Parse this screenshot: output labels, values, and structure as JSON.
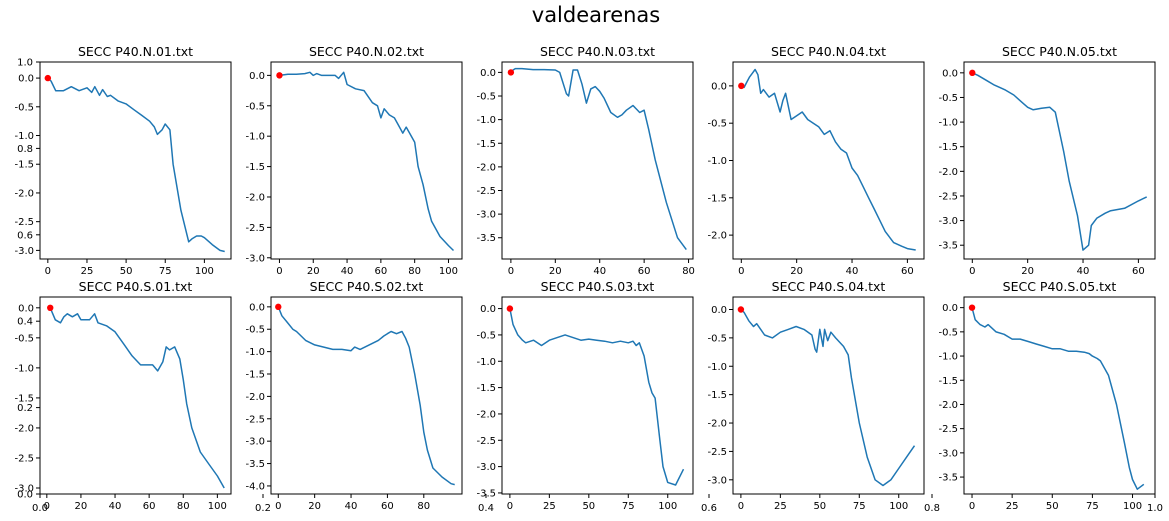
{
  "figure": {
    "title": "valdearenas",
    "background_axis": {
      "xticks": [
        "0.0",
        "0.2",
        "0.4",
        "0.6",
        "0.8",
        "1.0"
      ],
      "yticks": [
        "0.0",
        "0.2",
        "0.4",
        "0.6",
        "0.8",
        "1.0"
      ]
    }
  },
  "chart_data": [
    {
      "type": "line",
      "title": "SECC P40.N.01.txt",
      "xlim": [
        -5,
        117
      ],
      "ylim": [
        -3.15,
        0.28
      ],
      "xticks": [
        0,
        25,
        50,
        75,
        100
      ],
      "yticks": [
        0.0,
        -0.5,
        -1.0,
        -1.5,
        -2.0,
        -2.5,
        -3.0
      ],
      "x": [
        0,
        2,
        5,
        10,
        15,
        20,
        25,
        28,
        30,
        33,
        35,
        38,
        40,
        45,
        50,
        55,
        60,
        65,
        68,
        70,
        73,
        75,
        78,
        80,
        85,
        90,
        92,
        95,
        98,
        100,
        103,
        105,
        110,
        113
      ],
      "y": [
        0,
        -0.05,
        -0.22,
        -0.22,
        -0.15,
        -0.22,
        -0.17,
        -0.25,
        -0.15,
        -0.3,
        -0.2,
        -0.32,
        -0.3,
        -0.4,
        -0.45,
        -0.55,
        -0.65,
        -0.75,
        -0.85,
        -0.98,
        -0.9,
        -0.8,
        -0.9,
        -1.5,
        -2.3,
        -2.85,
        -2.8,
        -2.75,
        -2.75,
        -2.78,
        -2.85,
        -2.9,
        -3.0,
        -3.02
      ],
      "origin": [
        0,
        0
      ]
    },
    {
      "type": "line",
      "title": "SECC P40.N.02.txt",
      "xlim": [
        -5,
        108
      ],
      "ylim": [
        -3.02,
        0.22
      ],
      "xticks": [
        0,
        20,
        40,
        60,
        80,
        100
      ],
      "yticks": [
        0.0,
        -0.5,
        -1.0,
        -1.5,
        -2.0,
        -2.5,
        -3.0
      ],
      "x": [
        0,
        5,
        10,
        15,
        18,
        20,
        22,
        25,
        30,
        33,
        35,
        38,
        40,
        45,
        50,
        55,
        58,
        60,
        62,
        65,
        68,
        70,
        73,
        75,
        77,
        80,
        82,
        85,
        88,
        90,
        95,
        100,
        103
      ],
      "y": [
        0,
        0.02,
        0.02,
        0.03,
        0.05,
        0.0,
        0.03,
        0.0,
        0.0,
        0.0,
        -0.05,
        0.05,
        -0.15,
        -0.22,
        -0.25,
        -0.45,
        -0.5,
        -0.7,
        -0.55,
        -0.65,
        -0.7,
        -0.8,
        -0.95,
        -0.85,
        -0.95,
        -1.1,
        -1.5,
        -1.8,
        -2.2,
        -2.4,
        -2.65,
        -2.8,
        -2.88
      ],
      "origin": [
        0,
        0
      ]
    },
    {
      "type": "line",
      "title": "SECC P40.N.03.txt",
      "xlim": [
        -4,
        82
      ],
      "ylim": [
        -3.95,
        0.22
      ],
      "xticks": [
        0,
        20,
        40,
        60,
        80
      ],
      "yticks": [
        0.0,
        -0.5,
        -1.0,
        -1.5,
        -2.0,
        -2.5,
        -3.0,
        -3.5
      ],
      "x": [
        0,
        1,
        2,
        5,
        10,
        15,
        20,
        22,
        25,
        26,
        28,
        30,
        32,
        34,
        35,
        36,
        38,
        40,
        42,
        45,
        48,
        50,
        52,
        55,
        58,
        60,
        62,
        65,
        70,
        75,
        79
      ],
      "y": [
        0,
        0.05,
        0.08,
        0.08,
        0.06,
        0.06,
        0.05,
        0.0,
        -0.45,
        -0.5,
        0.05,
        0.05,
        -0.25,
        -0.65,
        -0.5,
        -0.35,
        -0.3,
        -0.4,
        -0.55,
        -0.85,
        -0.95,
        -0.9,
        -0.8,
        -0.7,
        -0.85,
        -0.8,
        -1.2,
        -1.85,
        -2.75,
        -3.5,
        -3.75
      ],
      "origin": [
        0,
        0
      ]
    },
    {
      "type": "line",
      "title": "SECC P40.N.04.txt",
      "xlim": [
        -3,
        66
      ],
      "ylim": [
        -2.32,
        0.32
      ],
      "xticks": [
        0,
        20,
        40,
        60
      ],
      "yticks": [
        0.0,
        -0.5,
        -1.0,
        -1.5,
        -2.0
      ],
      "x": [
        0,
        1,
        2,
        3,
        4,
        5,
        6,
        7,
        8,
        10,
        12,
        14,
        15,
        16,
        18,
        20,
        22,
        24,
        26,
        28,
        30,
        32,
        34,
        36,
        38,
        40,
        42,
        44,
        46,
        48,
        50,
        52,
        55,
        58,
        60,
        63
      ],
      "y": [
        0,
        -0.02,
        0.05,
        0.12,
        0.17,
        0.22,
        0.15,
        -0.1,
        -0.05,
        -0.15,
        -0.1,
        -0.35,
        -0.2,
        -0.1,
        -0.45,
        -0.4,
        -0.35,
        -0.45,
        -0.5,
        -0.55,
        -0.65,
        -0.6,
        -0.75,
        -0.85,
        -0.9,
        -1.1,
        -1.2,
        -1.35,
        -1.5,
        -1.65,
        -1.8,
        -1.95,
        -2.1,
        -2.15,
        -2.18,
        -2.2
      ],
      "origin": [
        0,
        0
      ]
    },
    {
      "type": "line",
      "title": "SECC P40.N.05.txt",
      "xlim": [
        -3,
        66
      ],
      "ylim": [
        -3.78,
        0.22
      ],
      "xticks": [
        0,
        20,
        40,
        60
      ],
      "yticks": [
        0.0,
        -0.5,
        -1.0,
        -1.5,
        -2.0,
        -2.5,
        -3.0,
        -3.5
      ],
      "x": [
        0,
        2,
        5,
        8,
        10,
        12,
        15,
        18,
        20,
        22,
        25,
        28,
        30,
        33,
        35,
        38,
        40,
        42,
        43,
        45,
        48,
        50,
        55,
        60,
        63
      ],
      "y": [
        0,
        -0.05,
        -0.15,
        -0.25,
        -0.3,
        -0.35,
        -0.45,
        -0.6,
        -0.7,
        -0.75,
        -0.72,
        -0.7,
        -0.8,
        -1.6,
        -2.2,
        -2.9,
        -3.6,
        -3.5,
        -3.1,
        -2.95,
        -2.85,
        -2.8,
        -2.75,
        -2.6,
        -2.52
      ],
      "origin": [
        0,
        0
      ]
    },
    {
      "type": "line",
      "title": "SECC P40.S.01.txt",
      "xlim": [
        -4,
        108
      ],
      "ylim": [
        -3.1,
        0.18
      ],
      "xticks": [
        0,
        20,
        40,
        60,
        80,
        100
      ],
      "yticks": [
        0.0,
        -0.5,
        -1.0,
        -1.5,
        -2.0,
        -2.5,
        -3.0
      ],
      "x": [
        2,
        5,
        8,
        10,
        12,
        15,
        18,
        20,
        25,
        28,
        30,
        35,
        40,
        45,
        50,
        55,
        60,
        62,
        65,
        68,
        70,
        72,
        75,
        78,
        80,
        82,
        85,
        90,
        95,
        100,
        104
      ],
      "y": [
        0,
        -0.2,
        -0.25,
        -0.15,
        -0.1,
        -0.15,
        -0.1,
        -0.2,
        -0.2,
        -0.1,
        -0.25,
        -0.3,
        -0.4,
        -0.6,
        -0.8,
        -0.95,
        -0.95,
        -0.95,
        -1.05,
        -0.9,
        -0.65,
        -0.7,
        -0.65,
        -0.85,
        -1.2,
        -1.6,
        -2.0,
        -2.4,
        -2.6,
        -2.8,
        -3.0
      ],
      "origin": [
        2,
        0
      ]
    },
    {
      "type": "line",
      "title": "SECC P40.S.02.txt",
      "xlim": [
        -4,
        101
      ],
      "ylim": [
        -4.18,
        0.22
      ],
      "xticks": [
        0,
        20,
        40,
        60,
        80
      ],
      "yticks": [
        0.0,
        -0.5,
        -1.0,
        -1.5,
        -2.0,
        -2.5,
        -3.0,
        -3.5,
        -4.0
      ],
      "x": [
        0,
        2,
        5,
        8,
        10,
        15,
        20,
        25,
        30,
        35,
        40,
        42,
        45,
        50,
        55,
        58,
        60,
        62,
        65,
        68,
        70,
        72,
        75,
        78,
        80,
        82,
        85,
        90,
        95,
        97
      ],
      "y": [
        0,
        -0.2,
        -0.35,
        -0.5,
        -0.55,
        -0.75,
        -0.85,
        -0.9,
        -0.95,
        -0.95,
        -0.98,
        -0.9,
        -0.95,
        -0.85,
        -0.75,
        -0.65,
        -0.6,
        -0.55,
        -0.6,
        -0.55,
        -0.7,
        -0.9,
        -1.5,
        -2.2,
        -2.8,
        -3.2,
        -3.6,
        -3.8,
        -3.95,
        -3.97
      ],
      "origin": [
        0,
        0
      ]
    },
    {
      "type": "line",
      "title": "SECC P40.S.03.txt",
      "xlim": [
        -5,
        116
      ],
      "ylim": [
        -3.52,
        0.22
      ],
      "xticks": [
        0,
        25,
        50,
        75,
        100
      ],
      "yticks": [
        0.0,
        -0.5,
        -1.0,
        -1.5,
        -2.0,
        -2.5,
        -3.0,
        -3.5
      ],
      "x": [
        0,
        2,
        5,
        8,
        10,
        15,
        20,
        25,
        30,
        35,
        40,
        45,
        50,
        55,
        60,
        65,
        70,
        75,
        78,
        80,
        82,
        85,
        88,
        90,
        92,
        95,
        97,
        100,
        105,
        110
      ],
      "y": [
        0,
        -0.3,
        -0.5,
        -0.6,
        -0.65,
        -0.6,
        -0.7,
        -0.6,
        -0.55,
        -0.5,
        -0.55,
        -0.6,
        -0.58,
        -0.6,
        -0.62,
        -0.65,
        -0.62,
        -0.65,
        -0.62,
        -0.7,
        -0.65,
        -0.9,
        -1.4,
        -1.6,
        -1.7,
        -2.5,
        -3.0,
        -3.3,
        -3.35,
        -3.05
      ],
      "origin": [
        0,
        0
      ]
    },
    {
      "type": "line",
      "title": "SECC P40.S.04.txt",
      "xlim": [
        -5,
        116
      ],
      "ylim": [
        -3.25,
        0.22
      ],
      "xticks": [
        0,
        25,
        50,
        75,
        100
      ],
      "yticks": [
        0.0,
        -0.5,
        -1.0,
        -1.5,
        -2.0,
        -2.5,
        -3.0
      ],
      "x": [
        0,
        2,
        5,
        8,
        10,
        15,
        20,
        25,
        30,
        35,
        40,
        45,
        47,
        48,
        50,
        52,
        53,
        55,
        57,
        60,
        65,
        68,
        70,
        75,
        80,
        85,
        90,
        95,
        100,
        105,
        110
      ],
      "y": [
        0,
        -0.05,
        -0.2,
        -0.3,
        -0.25,
        -0.45,
        -0.5,
        -0.4,
        -0.35,
        -0.3,
        -0.35,
        -0.45,
        -0.7,
        -0.75,
        -0.35,
        -0.65,
        -0.35,
        -0.55,
        -0.4,
        -0.5,
        -0.65,
        -0.8,
        -1.2,
        -2.0,
        -2.6,
        -3.0,
        -3.1,
        -3.0,
        -2.8,
        -2.6,
        -2.4
      ],
      "origin": [
        0,
        0
      ]
    },
    {
      "type": "line",
      "title": "SECC P40.S.05.txt",
      "xlim": [
        -5,
        114
      ],
      "ylim": [
        -3.85,
        0.22
      ],
      "xticks": [
        0,
        25,
        50,
        75,
        100
      ],
      "yticks": [
        0.0,
        -0.5,
        -1.0,
        -1.5,
        -2.0,
        -2.5,
        -3.0,
        -3.5
      ],
      "x": [
        0,
        2,
        5,
        8,
        10,
        15,
        20,
        25,
        30,
        35,
        40,
        45,
        50,
        55,
        60,
        65,
        70,
        73,
        75,
        78,
        80,
        85,
        90,
        95,
        98,
        100,
        103,
        107
      ],
      "y": [
        0,
        -0.25,
        -0.35,
        -0.4,
        -0.35,
        -0.5,
        -0.55,
        -0.65,
        -0.65,
        -0.7,
        -0.75,
        -0.8,
        -0.85,
        -0.85,
        -0.9,
        -0.9,
        -0.92,
        -0.95,
        -1.0,
        -1.05,
        -1.1,
        -1.4,
        -2.0,
        -2.8,
        -3.3,
        -3.55,
        -3.75,
        -3.65
      ],
      "origin": [
        0,
        0
      ]
    }
  ]
}
